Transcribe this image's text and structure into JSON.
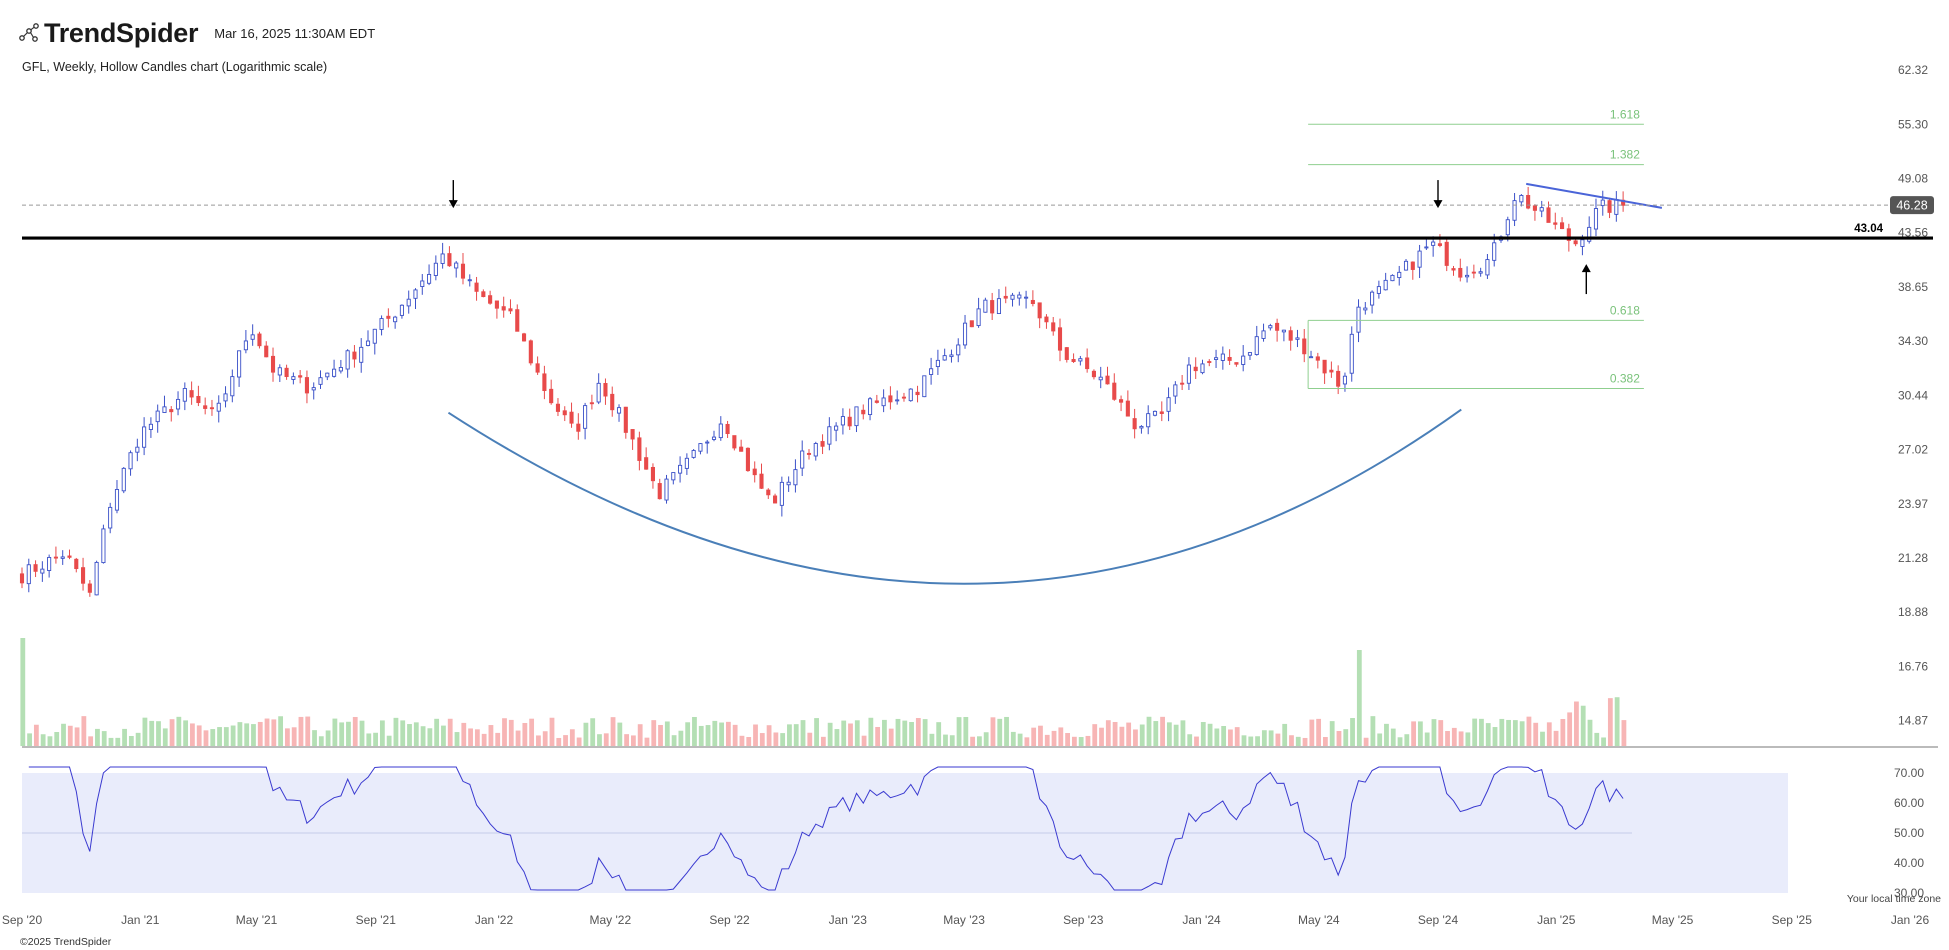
{
  "header": {
    "brand": "TrendSpider",
    "timestamp": "Mar 16, 2025 11:30AM EDT",
    "subtitle": "GFL, Weekly, Hollow Candles chart (Logarithmic scale)"
  },
  "footer": {
    "copyright": "©2025 TrendSpider",
    "timezone_note": "Your local time zone"
  },
  "colors": {
    "up": "#3a50c8",
    "down": "#e84a4a",
    "vol_up": "#b4dfb4",
    "vol_down": "#f7b5b5",
    "rsi_line": "#3a3ad0",
    "rsi_band": "#e9ecfb",
    "fib": "#8fcf8f",
    "cup": "#4a7fb8",
    "resistance": "#000000",
    "trendline": "#4a64d8"
  },
  "chart_data": {
    "type": "candlestick",
    "ticker": "GFL",
    "interval": "Weekly",
    "scale": "log",
    "x_range": [
      "2020-09-01",
      "2026-01-01"
    ],
    "x_ticks": [
      {
        "date": "2020-09-01",
        "label": "Sep '20"
      },
      {
        "date": "2021-01-01",
        "label": "Jan '21"
      },
      {
        "date": "2021-05-01",
        "label": "May '21"
      },
      {
        "date": "2021-09-01",
        "label": "Sep '21"
      },
      {
        "date": "2022-01-01",
        "label": "Jan '22"
      },
      {
        "date": "2022-05-01",
        "label": "May '22"
      },
      {
        "date": "2022-09-01",
        "label": "Sep '22"
      },
      {
        "date": "2023-01-01",
        "label": "Jan '23"
      },
      {
        "date": "2023-05-01",
        "label": "May '23"
      },
      {
        "date": "2023-09-01",
        "label": "Sep '23"
      },
      {
        "date": "2024-01-01",
        "label": "Jan '24"
      },
      {
        "date": "2024-05-01",
        "label": "May '24"
      },
      {
        "date": "2024-09-01",
        "label": "Sep '24"
      },
      {
        "date": "2025-01-01",
        "label": "Jan '25"
      },
      {
        "date": "2025-05-01",
        "label": "May '25"
      },
      {
        "date": "2025-09-01",
        "label": "Sep '25"
      },
      {
        "date": "2026-01-01",
        "label": "Jan '26"
      }
    ],
    "price_axis": {
      "ylim": [
        14.0,
        62.32
      ],
      "ticks": [
        62.32,
        55.3,
        49.08,
        43.56,
        38.65,
        34.3,
        30.44,
        27.02,
        23.97,
        21.28,
        18.88,
        16.76,
        14.87
      ],
      "last_price": "46.28"
    },
    "price_waypoints": [
      {
        "date": "2020-09-01",
        "price": 20.5
      },
      {
        "date": "2020-10-15",
        "price": 21.5
      },
      {
        "date": "2020-11-10",
        "price": 19.6
      },
      {
        "date": "2020-12-01",
        "price": 24.0
      },
      {
        "date": "2021-01-01",
        "price": 28.0
      },
      {
        "date": "2021-02-15",
        "price": 30.5
      },
      {
        "date": "2021-03-20",
        "price": 29.0
      },
      {
        "date": "2021-04-25",
        "price": 35.5
      },
      {
        "date": "2021-05-20",
        "price": 32.0
      },
      {
        "date": "2021-06-25",
        "price": 31.0
      },
      {
        "date": "2021-08-10",
        "price": 33.5
      },
      {
        "date": "2021-09-20",
        "price": 36.5
      },
      {
        "date": "2021-11-10",
        "price": 41.5
      },
      {
        "date": "2021-12-15",
        "price": 38.0
      },
      {
        "date": "2022-01-20",
        "price": 36.0
      },
      {
        "date": "2022-02-25",
        "price": 30.5
      },
      {
        "date": "2022-03-25",
        "price": 28.0
      },
      {
        "date": "2022-04-20",
        "price": 31.5
      },
      {
        "date": "2022-05-20",
        "price": 28.0
      },
      {
        "date": "2022-06-20",
        "price": 24.5
      },
      {
        "date": "2022-07-25",
        "price": 26.5
      },
      {
        "date": "2022-08-25",
        "price": 29.0
      },
      {
        "date": "2022-09-25",
        "price": 25.5
      },
      {
        "date": "2022-10-15",
        "price": 24.0
      },
      {
        "date": "2022-11-20",
        "price": 27.0
      },
      {
        "date": "2023-01-15",
        "price": 29.5
      },
      {
        "date": "2023-03-15",
        "price": 31.0
      },
      {
        "date": "2023-04-20",
        "price": 34.0
      },
      {
        "date": "2023-05-20",
        "price": 37.0
      },
      {
        "date": "2023-07-10",
        "price": 37.5
      },
      {
        "date": "2023-08-10",
        "price": 33.5
      },
      {
        "date": "2023-09-20",
        "price": 31.5
      },
      {
        "date": "2023-10-25",
        "price": 28.5
      },
      {
        "date": "2023-11-20",
        "price": 29.0
      },
      {
        "date": "2023-12-20",
        "price": 32.5
      },
      {
        "date": "2024-02-10",
        "price": 33.0
      },
      {
        "date": "2024-03-10",
        "price": 35.5
      },
      {
        "date": "2024-04-15",
        "price": 34.0
      },
      {
        "date": "2024-05-25",
        "price": 31.0
      },
      {
        "date": "2024-06-10",
        "price": 37.0
      },
      {
        "date": "2024-07-15",
        "price": 39.0
      },
      {
        "date": "2024-08-25",
        "price": 42.5
      },
      {
        "date": "2024-09-25",
        "price": 40.0
      },
      {
        "date": "2024-10-25",
        "price": 41.0
      },
      {
        "date": "2024-11-20",
        "price": 47.5
      },
      {
        "date": "2024-12-20",
        "price": 45.0
      },
      {
        "date": "2025-01-20",
        "price": 42.5
      },
      {
        "date": "2025-02-15",
        "price": 46.0
      },
      {
        "date": "2025-03-14",
        "price": 46.28
      }
    ],
    "resistance": {
      "price": 43.04,
      "label": "43.04"
    },
    "fib_levels": [
      {
        "level": "1.618",
        "price": 55.3
      },
      {
        "level": "1.382",
        "price": 50.6
      },
      {
        "level": "0.618",
        "price": 35.9
      },
      {
        "level": "0.382",
        "price": 30.9
      }
    ],
    "fib_range": [
      "2024-04-20",
      "2025-04-20"
    ],
    "trendline": [
      {
        "date": "2024-12-01",
        "price": 48.5
      },
      {
        "date": "2025-04-20",
        "price": 46.0
      }
    ],
    "cup": {
      "start": {
        "date": "2021-11-15",
        "price": 29.3
      },
      "bottom": {
        "date": "2023-05-15",
        "price": 20.1
      },
      "end": {
        "date": "2024-09-25",
        "price": 29.5
      }
    },
    "arrows": [
      {
        "date": "2021-11-20",
        "direction": "down"
      },
      {
        "date": "2024-09-01",
        "direction": "down"
      },
      {
        "date": "2025-02-01",
        "direction": "up"
      }
    ],
    "rsi": {
      "ticks": [
        70.0,
        60.0,
        50.0,
        40.0,
        30.0
      ],
      "ylim": [
        30,
        70
      ],
      "band": [
        30,
        70
      ],
      "midline": 50
    }
  }
}
